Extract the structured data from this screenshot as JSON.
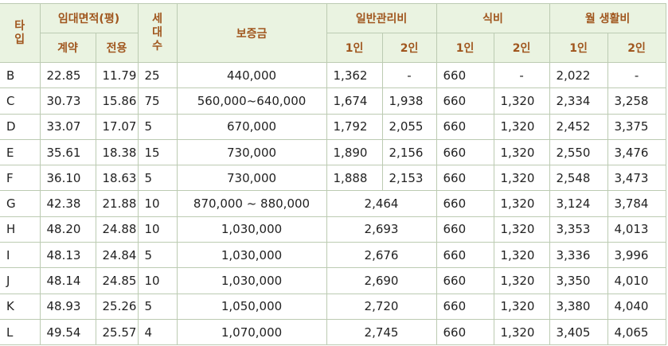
{
  "header": {
    "row1": [
      "타입",
      "임대면적(평)",
      "세대수",
      "보증금",
      "일반관리비",
      "식비",
      "월 생활비"
    ],
    "row2": [
      "계약",
      "전용",
      "1인",
      "2인",
      "1인",
      "2인",
      "1인",
      "2인"
    ]
  },
  "table": {
    "rows": [
      [
        "B",
        "22.85",
        "11.79",
        "25",
        "440,000",
        "1,362",
        "-",
        "660",
        "-",
        "2,022",
        "-"
      ],
      [
        "C",
        "30.73",
        "15.86",
        "75",
        "560,000~640,000",
        "1,674",
        "1,938",
        "660",
        "1,320",
        "2,334",
        "3,258"
      ],
      [
        "D",
        "33.07",
        "17.07",
        "5",
        "670,000",
        "1,792",
        "2,055",
        "660",
        "1,320",
        "2,452",
        "3,375"
      ],
      [
        "E",
        "35.61",
        "18.38",
        "15",
        "730,000",
        "1,890",
        "2,156",
        "660",
        "1,320",
        "2,550",
        "3,476"
      ],
      [
        "F",
        "36.10",
        "18.63",
        "5",
        "730,000",
        "1,888",
        "2,153",
        "660",
        "1,320",
        "2,548",
        "3,473"
      ],
      [
        "G",
        "42.38",
        "21.88",
        "10",
        "870,000 ~ 880,000",
        "2,464",
        "660",
        "1,320",
        "3,124",
        "3,784"
      ],
      [
        "H",
        "48.20",
        "24.88",
        "10",
        "1,030,000",
        "2,693",
        "660",
        "1,320",
        "3,353",
        "4,013"
      ],
      [
        "I",
        "48.13",
        "24.84",
        "5",
        "1,030,000",
        "2,676",
        "660",
        "1,320",
        "3,336",
        "3,996"
      ],
      [
        "J",
        "48.14",
        "24.85",
        "10",
        "1,030,000",
        "2,690",
        "660",
        "1,320",
        "3,350",
        "4,010"
      ],
      [
        "K",
        "48.93",
        "25.26",
        "5",
        "1,050,000",
        "2,720",
        "660",
        "1,320",
        "3,380",
        "4,040"
      ],
      [
        "L",
        "49.54",
        "25.57",
        "4",
        "1,070,000",
        "2,745",
        "660",
        "1,320",
        "3,405",
        "4,065"
      ]
    ]
  }
}
